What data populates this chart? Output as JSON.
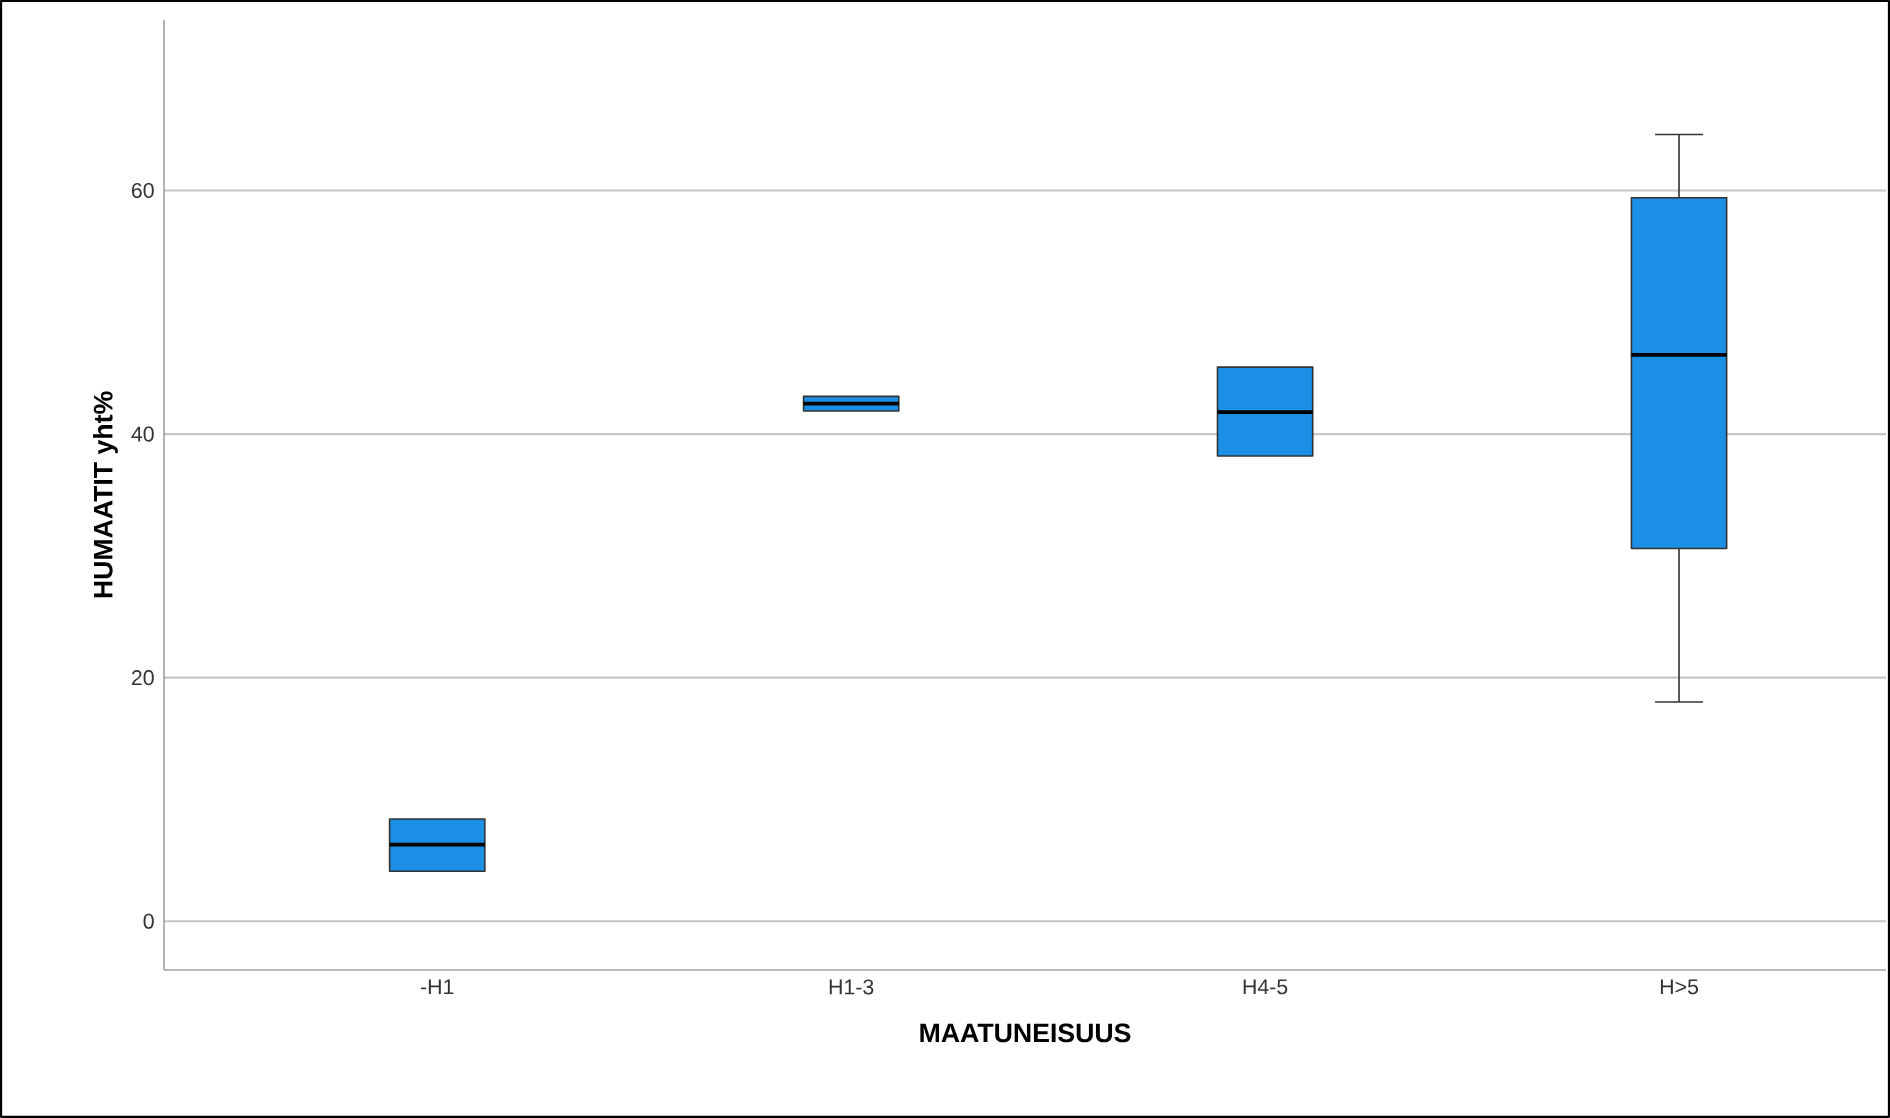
{
  "chart_data": {
    "type": "box",
    "xlabel": "MAATUNEISUUS",
    "ylabel": "HUMAATIT yht%",
    "categories": [
      "-H1",
      "H1-3",
      "H4-5",
      "H>5"
    ],
    "boxes": [
      {
        "low": 4.1,
        "q1": 4.1,
        "median": 6.3,
        "q3": 8.4,
        "high": 8.4
      },
      {
        "low": 41.9,
        "q1": 41.9,
        "median": 42.5,
        "q3": 43.1,
        "high": 43.1
      },
      {
        "low": 38.2,
        "q1": 38.2,
        "median": 41.8,
        "q3": 45.5,
        "high": 45.5
      },
      {
        "low": 18.0,
        "q1": 30.6,
        "median": 46.5,
        "q3": 59.4,
        "high": 64.6
      }
    ],
    "color": "#1b8ee6",
    "ylim": [
      -4,
      74
    ],
    "yticks": [
      0,
      20,
      40,
      60
    ],
    "grid": "y"
  }
}
